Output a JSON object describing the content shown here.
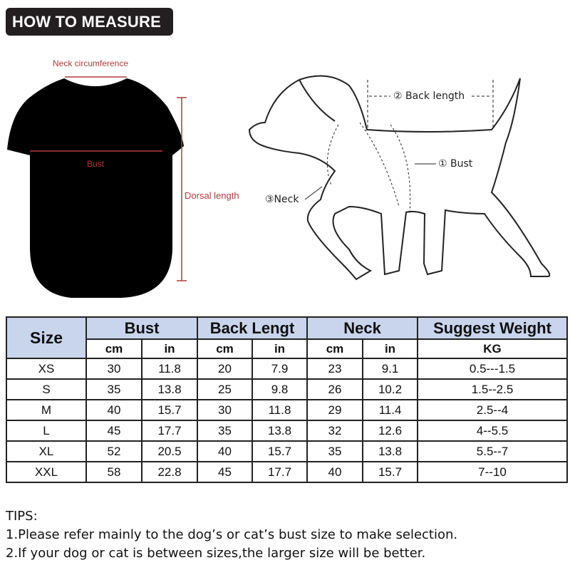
{
  "title": "HOW TO MEASURE",
  "shirt_labels": {
    "neck": "Neck circumference",
    "bust": "Bust",
    "dorsal": "Dorsal length"
  },
  "dog_labels": {
    "back": "② Back length",
    "bust": "① Bust",
    "neck": "③Neck"
  },
  "colors": {
    "label_red": "#b23a3a",
    "header_blue": "#c9d5ec",
    "badge": "#231f20"
  },
  "table": {
    "headers": [
      "Size",
      "Bust",
      "Back Lengt",
      "Neck",
      "Suggest Weight"
    ],
    "subheaders": [
      "cm",
      "in",
      "cm",
      "in",
      "cm",
      "in",
      "KG"
    ],
    "rows": [
      [
        "XS",
        "30",
        "11.8",
        "20",
        "7.9",
        "23",
        "9.1",
        "0.5---1.5"
      ],
      [
        "S",
        "35",
        "13.8",
        "25",
        "9.8",
        "26",
        "10.2",
        "1.5--2.5"
      ],
      [
        "M",
        "40",
        "15.7",
        "30",
        "11.8",
        "29",
        "11.4",
        "2.5--4"
      ],
      [
        "L",
        "45",
        "17.7",
        "35",
        "13.8",
        "32",
        "12.6",
        "4--5.5"
      ],
      [
        "XL",
        "52",
        "20.5",
        "40",
        "15.7",
        "35",
        "13.8",
        "5.5--7"
      ],
      [
        "XXL",
        "58",
        "22.8",
        "45",
        "17.7",
        "40",
        "15.7",
        "7--10"
      ]
    ]
  },
  "tips": {
    "heading": "TIPS:",
    "lines": [
      "1.Please refer mainly to the dog’s or cat’s bust size to make selection.",
      "2.If your dog or cat is between sizes,the larger size will be better."
    ]
  }
}
